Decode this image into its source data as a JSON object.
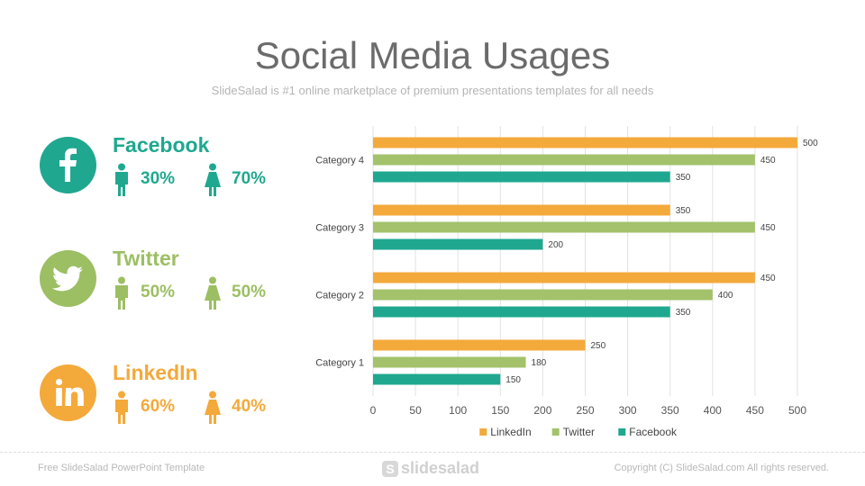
{
  "title": "Social Media Usages",
  "subtitle": "SlideSalad is #1 online marketplace of premium presentations templates for all needs",
  "platforms": [
    {
      "name": "Facebook",
      "icon": "facebook-logo-icon",
      "color": "#1fa88f",
      "male_pct": "30%",
      "female_pct": "70%"
    },
    {
      "name": "Twitter",
      "icon": "twitter-bird-icon",
      "color": "#9cbf63",
      "male_pct": "50%",
      "female_pct": "50%"
    },
    {
      "name": "LinkedIn",
      "icon": "linkedin-logo-icon",
      "color": "#f4a93b",
      "male_pct": "60%",
      "female_pct": "40%"
    }
  ],
  "chart_data": {
    "type": "bar",
    "orientation": "horizontal",
    "categories": [
      "Category 1",
      "Category 2",
      "Category 3",
      "Category 4"
    ],
    "series": [
      {
        "name": "LinkedIn",
        "color": "#f4a93b",
        "values": [
          250,
          450,
          350,
          500
        ]
      },
      {
        "name": "Twitter",
        "color": "#a3c26b",
        "values": [
          180,
          400,
          450,
          450
        ]
      },
      {
        "name": "Facebook",
        "color": "#1fa88f",
        "values": [
          150,
          350,
          200,
          350
        ]
      }
    ],
    "xlim": [
      0,
      500
    ],
    "xticks": [
      0,
      50,
      100,
      150,
      200,
      250,
      300,
      350,
      400,
      450,
      500
    ],
    "grid": true,
    "legend": "bottom"
  },
  "footer": {
    "left": "Free SlideSalad PowerPoint Template",
    "logo_letter": "S",
    "logo_text": "slidesalad",
    "right": "Copyright (C) SlideSalad.com All rights reserved."
  }
}
